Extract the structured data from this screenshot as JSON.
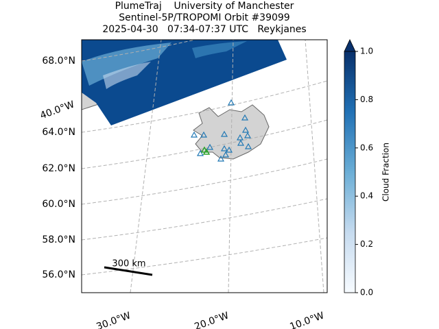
{
  "title": {
    "line1": "PlumeTraj    University of Manchester",
    "line2": "Sentinel-5P/TROPOMI Orbit #39099",
    "line3": "2025-04-30   07:34-07:37 UTC   Reykjanes"
  },
  "map": {
    "lat_labels": [
      "68.0°N",
      "64.0°N",
      "62.0°N",
      "60.0°N",
      "58.0°N",
      "56.0°N"
    ],
    "lon_labels": [
      "40.0°W",
      "30.0°W",
      "20.0°W",
      "10.0°W"
    ],
    "scale_label": "300 km"
  },
  "colorbar": {
    "label": "Cloud Fraction",
    "lim": [
      0,
      1
    ],
    "ticks": [
      {
        "value": 0,
        "label": "0.0"
      },
      0.2,
      0.4,
      0.6,
      0.8,
      {
        "value": 1,
        "label": "1.0"
      }
    ]
  }
}
